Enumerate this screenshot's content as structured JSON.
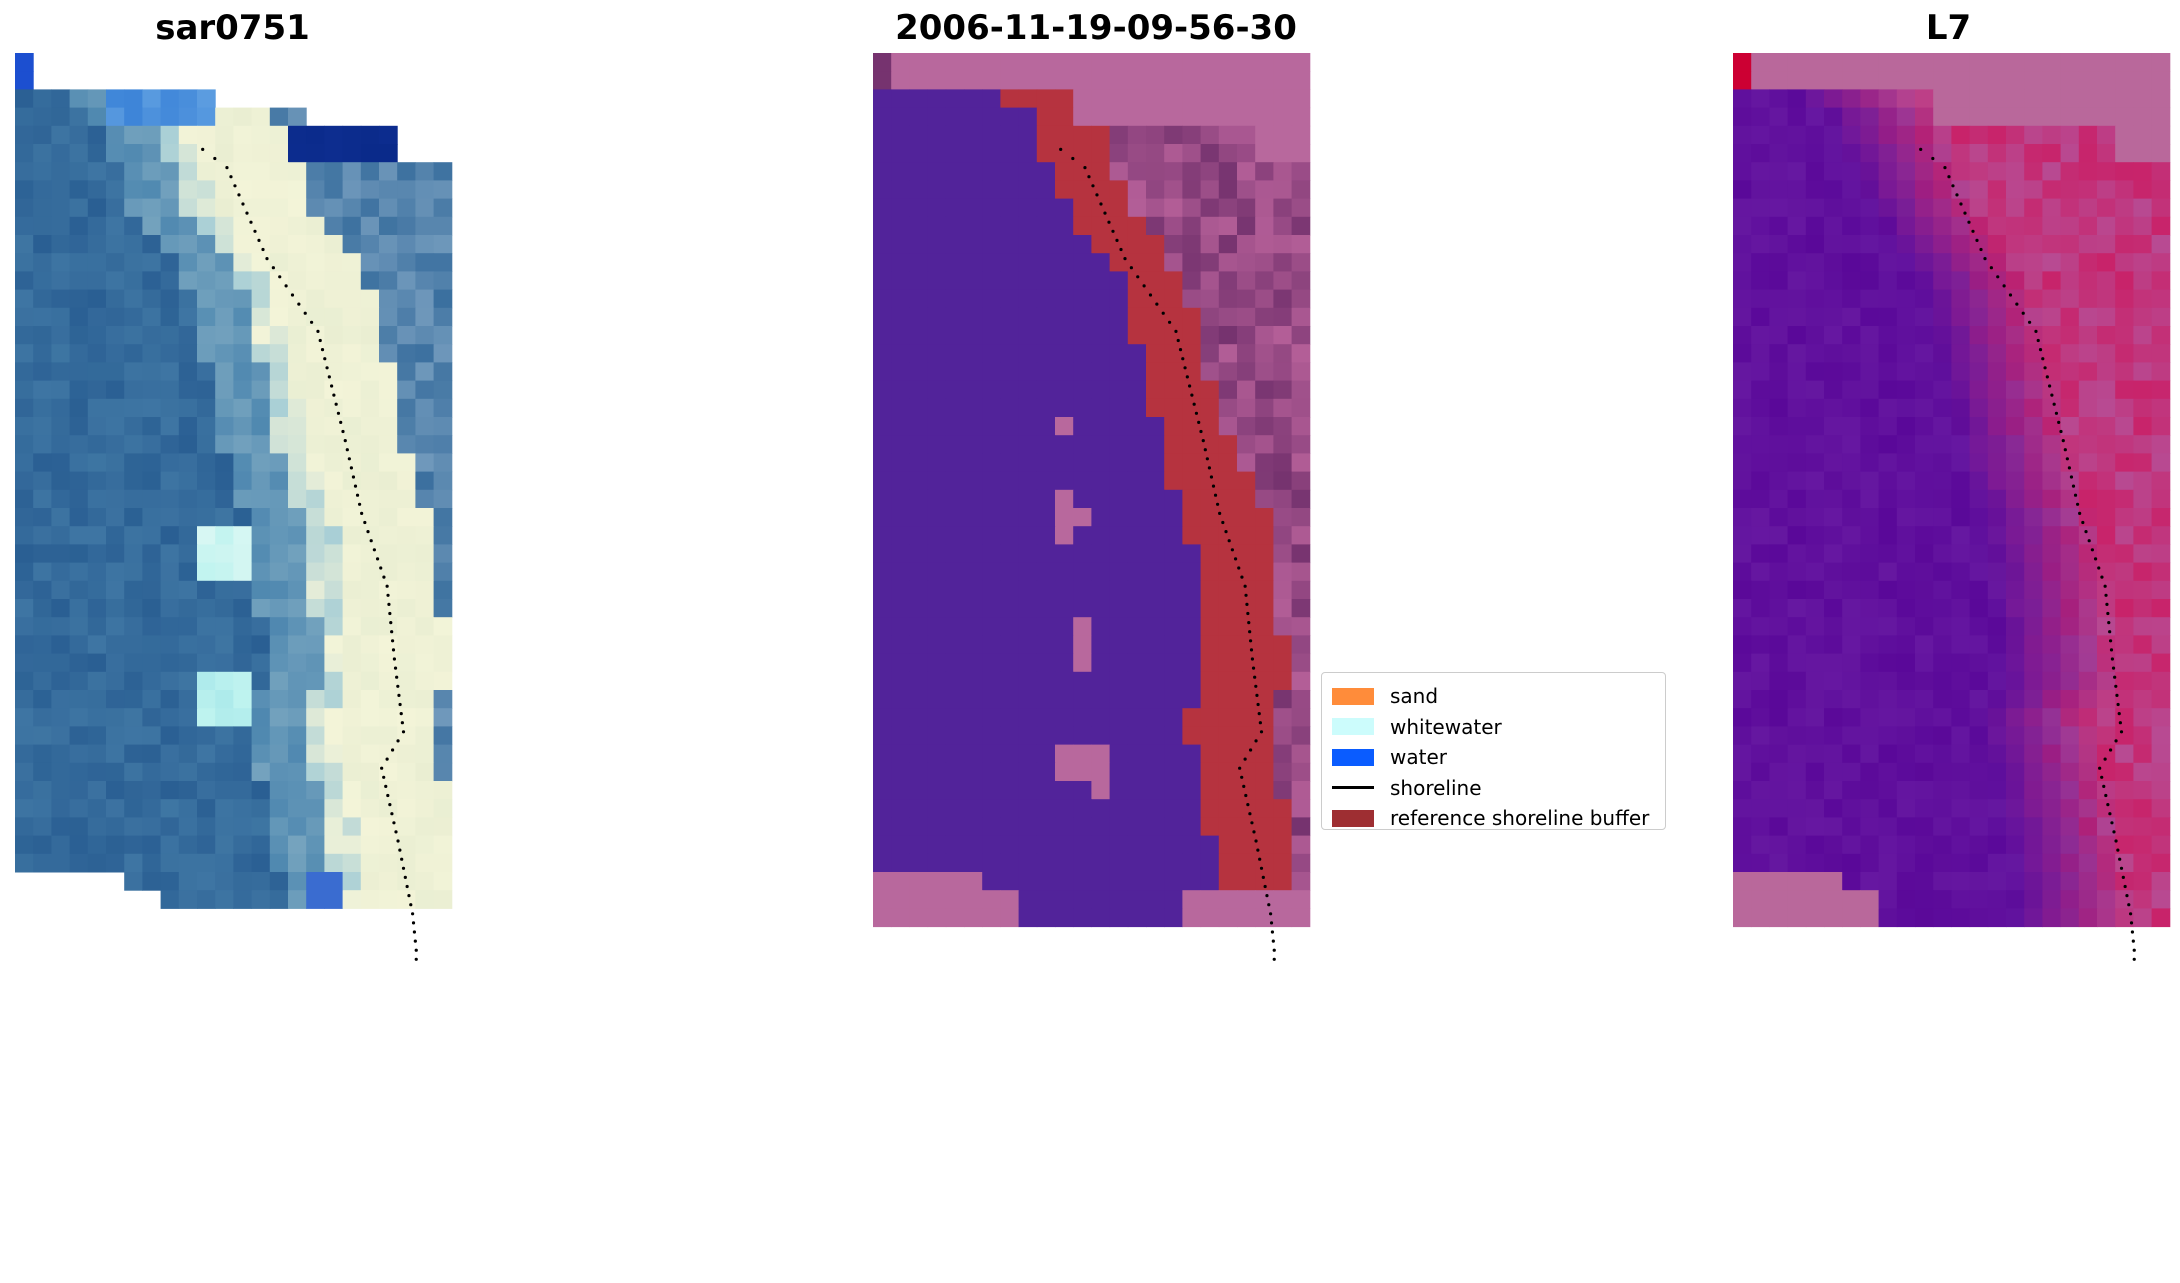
{
  "chart_data": [
    {
      "type": "heatmap",
      "title": "sar0751",
      "description_kind": "rgb satellite image with detected shoreline points",
      "colors": {
        "water_deep": "#2a5f93",
        "water_light": "#4f88b0",
        "surf": "#f3f4d8",
        "foam": "#bff3ef",
        "dark_blue": "#0a2a8a",
        "corner_blue": "#1c4fd0",
        "shoreline": "#000000"
      }
    },
    {
      "type": "heatmap",
      "title": "2006-11-19-09-56-30",
      "description_kind": "classified image overlay",
      "colors": {
        "water": "#52239a",
        "buffer": "#b6333f",
        "land": "#b35e97",
        "pink": "#b8689d",
        "dark_land": "#76336f",
        "shoreline": "#000000"
      }
    },
    {
      "type": "heatmap",
      "title": "L7",
      "description_kind": "index image with detected shoreline points",
      "colors": {
        "low": "#5a0899",
        "high": "#c8236a",
        "pink_border": "#b9689b",
        "corner": "#cc0033",
        "shoreline": "#000000"
      }
    }
  ],
  "legend": {
    "items": [
      {
        "label": "sand",
        "kind": "patch",
        "color": "#ff8c3a"
      },
      {
        "label": "whitewater",
        "kind": "patch",
        "color": "#ccfcfc"
      },
      {
        "label": "water",
        "kind": "patch",
        "color": "#0a5cff"
      },
      {
        "label": "shoreline",
        "kind": "line",
        "color": "#000000"
      },
      {
        "label": "reference shoreline buffer",
        "kind": "patch",
        "color": "#9e2e32"
      }
    ]
  }
}
